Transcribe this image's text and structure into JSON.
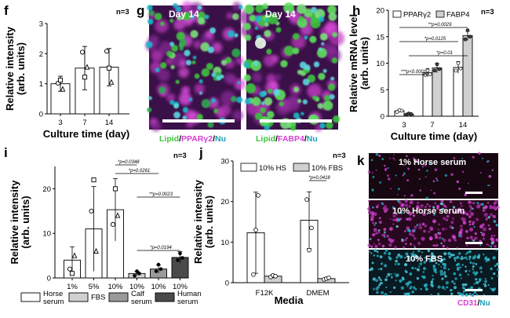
{
  "panels": {
    "f": {
      "label": "f",
      "n": "n=3"
    },
    "g": {
      "label": "g",
      "left_day": "Day 14",
      "right_day": "Day 14",
      "left_caption": [
        {
          "t": "Lipid",
          "c": "#3ec43e"
        },
        {
          "t": "/",
          "c": "#000000"
        },
        {
          "t": "PPARγ2",
          "c": "#d63fd6"
        },
        {
          "t": "/",
          "c": "#000000"
        },
        {
          "t": "Nu",
          "c": "#1f9fb8"
        }
      ],
      "right_caption": [
        {
          "t": "Lipid",
          "c": "#3ec43e"
        },
        {
          "t": "/",
          "c": "#000000"
        },
        {
          "t": "FABP4",
          "c": "#d63fd6"
        },
        {
          "t": "/",
          "c": "#000000"
        },
        {
          "t": "Nu",
          "c": "#1f9fb8"
        }
      ]
    },
    "h": {
      "label": "h",
      "n": "n=3"
    },
    "i": {
      "label": "i",
      "n": "n=3"
    },
    "j": {
      "label": "j",
      "n": "n=3"
    },
    "k": {
      "label": "k",
      "top": "1% Horse serum",
      "middle": "10% Horse serum",
      "bottom": "10% FBS",
      "caption": [
        {
          "t": "CD31",
          "c": "#d63fd6"
        },
        {
          "t": "/",
          "c": "#000000"
        },
        {
          "t": "Nu",
          "c": "#1f9fb8"
        }
      ]
    }
  },
  "colors": {
    "white": "#ffffff",
    "light_gray": "#d0d0d0",
    "mid_gray": "#9a9a9a",
    "dark_gray": "#4a4a4a",
    "magenta": "#d63fd6",
    "green": "#3ec43e",
    "cyan": "#1f9fb8"
  },
  "chart_data": [
    {
      "id": "f",
      "type": "bar",
      "categories": [
        "3",
        "7",
        "14"
      ],
      "values": [
        1.0,
        1.52,
        1.55
      ],
      "errors": [
        0.25,
        0.72,
        0.62
      ],
      "points": [
        [
          1.02,
          1.12,
          0.82
        ],
        [
          2.05,
          1.22,
          1.55
        ],
        [
          2.08,
          1.52,
          1.05
        ]
      ],
      "markers": [
        "circle",
        "square",
        "triangle"
      ],
      "xlabel": "Culture time (day)",
      "ylabel": "Relative intensity\n(arb. units)",
      "ylim": [
        0,
        3
      ],
      "yticks": [
        0,
        1,
        2,
        3
      ],
      "n": "n=3"
    },
    {
      "id": "h",
      "type": "bar",
      "categories": [
        "3",
        "7",
        "14"
      ],
      "series": [
        {
          "name": "PPARγ2",
          "color": "#ffffff",
          "values": [
            1.0,
            8.2,
            9.2
          ],
          "errors": [
            0.3,
            0.8,
            1.1
          ],
          "points": [
            [
              0.8,
              1.1,
              1.05
            ],
            [
              7.8,
              8.6,
              7.9
            ],
            [
              8.6,
              10.0,
              9.0
            ]
          ]
        },
        {
          "name": "FABP4",
          "color": "#d0d0d0",
          "values": [
            0.4,
            9.1,
            15.2
          ],
          "errors": [
            0.2,
            0.9,
            0.9
          ],
          "points": [
            [
              0.3,
              0.5,
              0.4
            ],
            [
              8.6,
              9.8,
              8.9
            ],
            [
              14.5,
              16.2,
              15.0
            ]
          ]
        }
      ],
      "significance": [
        {
          "text": "**p=0.0029"
        },
        {
          "text": "*p=0.0125"
        },
        {
          "text": "*p=0.01"
        },
        {
          "text": "***p<0.0001"
        }
      ],
      "xlabel": "Culture time (day)",
      "ylabel": "Relative mRNA level\n(arb. units)",
      "ylim": [
        0,
        20
      ],
      "yticks": [
        0,
        5,
        10,
        15,
        20
      ],
      "n": "n=3"
    },
    {
      "id": "i",
      "type": "bar",
      "categories": [
        "1%",
        "5%",
        "10%",
        "10%",
        "10%",
        "10%"
      ],
      "colors": [
        "#ffffff",
        "#ffffff",
        "#ffffff",
        "#d0d0d0",
        "#9a9a9a",
        "#4a4a4a"
      ],
      "values": [
        4.0,
        11.0,
        15.3,
        1.0,
        2.0,
        4.6
      ],
      "errors": [
        3.0,
        9.5,
        7.0,
        0.5,
        0.9,
        1.3
      ],
      "points": [
        [
          2.0,
          1.0,
          5.0
        ],
        [
          15.0,
          22.0,
          6.0
        ],
        [
          12.0,
          20.0,
          14.0
        ],
        [
          0.5,
          1.5,
          1.0
        ],
        [
          1.5,
          3.0,
          2.0
        ],
        [
          4.0,
          5.5,
          4.5
        ]
      ],
      "legend": [
        {
          "name": "Horse\nserum",
          "color": "#ffffff"
        },
        {
          "name": "FBS",
          "color": "#d0d0d0"
        },
        {
          "name": "Calf\nserum",
          "color": "#9a9a9a"
        },
        {
          "name": "Human\nserum",
          "color": "#4a4a4a"
        }
      ],
      "significance": [
        {
          "text": "*p=0.0348"
        },
        {
          "text": "*p=0.0261"
        },
        {
          "text": "**p=0.0023"
        },
        {
          "text": "*p=0.0194"
        }
      ],
      "ylabel": "Relative intensity\n(arb. units)",
      "ylim": [
        0,
        25
      ],
      "yticks": [
        0,
        10,
        20
      ],
      "n": "n=3"
    },
    {
      "id": "j",
      "type": "bar",
      "categories": [
        "F12K",
        "DMEM"
      ],
      "series": [
        {
          "name": "10% HS",
          "color": "#ffffff",
          "values": [
            12.3,
            15.4
          ],
          "errors": [
            10.0,
            7.0
          ],
          "points": [
            [
              2.0,
              13.0,
              21.5
            ],
            [
              20.5,
              8.0,
              13.5
            ]
          ]
        },
        {
          "name": "10% FBS",
          "color": "#d0d0d0",
          "values": [
            1.6,
            1.0
          ],
          "errors": [
            0.4,
            0.3
          ],
          "points": [
            [
              1.4,
              1.8,
              1.6
            ],
            [
              0.8,
              1.0,
              1.2
            ]
          ]
        }
      ],
      "significance": [
        {
          "text": "*p=0.0418"
        }
      ],
      "xlabel": "Media",
      "ylabel": "Relative intensity\n(arb. units)",
      "ylim": [
        0,
        30
      ],
      "yticks": [
        0,
        10,
        20,
        30
      ],
      "n": "n=3"
    }
  ]
}
